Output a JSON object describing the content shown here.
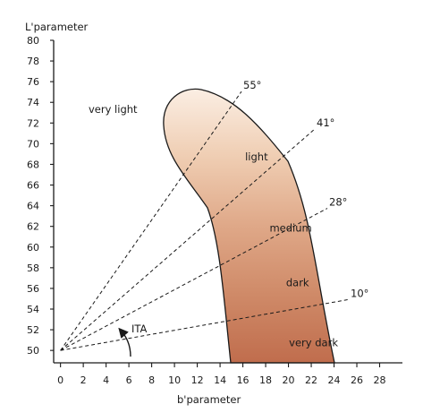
{
  "axes": {
    "y_title": "L'parameter",
    "x_title": "b'parameter",
    "y_ticks": [
      "50",
      "52",
      "54",
      "56",
      "58",
      "60",
      "62",
      "64",
      "66",
      "68",
      "70",
      "72",
      "74",
      "76",
      "78",
      "80"
    ],
    "x_ticks": [
      "0",
      "2",
      "4",
      "6",
      "8",
      "10",
      "12",
      "14",
      "16",
      "18",
      "20",
      "22",
      "24",
      "26",
      "28"
    ],
    "y_range": [
      48.8,
      80
    ],
    "x_range": [
      -0.6,
      30
    ]
  },
  "angle_lines": [
    {
      "label": "55°",
      "angle": 55
    },
    {
      "label": "41°",
      "angle": 41
    },
    {
      "label": "28°",
      "angle": 28
    },
    {
      "label": "10°",
      "angle": 10
    }
  ],
  "ita_label": "ITA",
  "regions": [
    {
      "label": "very light",
      "b": 4.6,
      "L": 73.0
    },
    {
      "label": "light",
      "b": 17.2,
      "L": 68.4
    },
    {
      "label": "medium",
      "b": 20.2,
      "L": 61.5
    },
    {
      "label": "dark",
      "b": 20.8,
      "L": 56.2
    },
    {
      "label": "very dark",
      "b": 22.2,
      "L": 50.4
    }
  ],
  "colors": {
    "lightest": "#fbeee3",
    "light": "#efcdb2",
    "medium": "#dfa888",
    "dark": "#cf8a68",
    "darkest": "#c06d4d"
  }
}
